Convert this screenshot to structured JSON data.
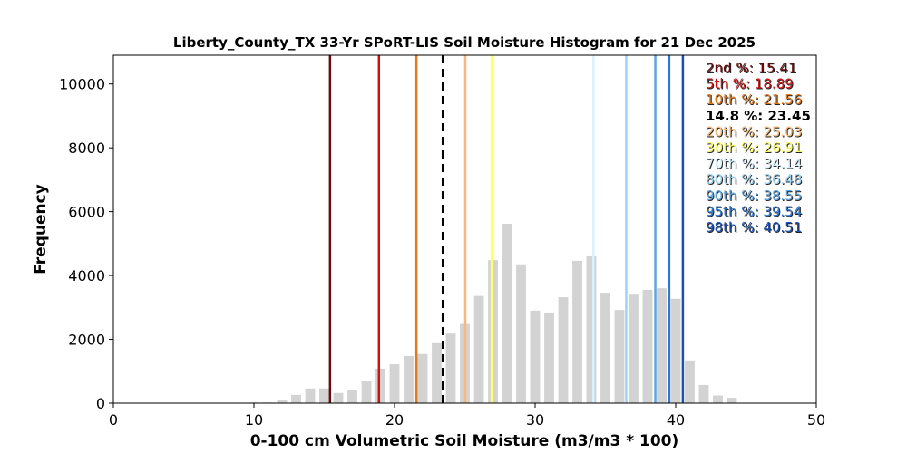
{
  "chart_data": {
    "type": "bar",
    "title": "Liberty_County_TX 33-Yr SPoRT-LIS Soil Moisture Histogram for 21 Dec 2025",
    "xlabel": "0-100 cm Volumetric Soil Moisture (m3/m3 * 100)",
    "ylabel": "Frequency",
    "xlim": [
      0,
      50
    ],
    "ylim": [
      0,
      10900
    ],
    "xticks": [
      0,
      10,
      20,
      30,
      40,
      50
    ],
    "yticks": [
      0,
      2000,
      4000,
      6000,
      8000,
      10000
    ],
    "bar_color": "#d3d3d3",
    "bar_width": 0.7,
    "bins": [
      {
        "x": 10.0,
        "value": 20
      },
      {
        "x": 11.0,
        "value": 20
      },
      {
        "x": 12.0,
        "value": 90
      },
      {
        "x": 13.0,
        "value": 260
      },
      {
        "x": 14.0,
        "value": 460
      },
      {
        "x": 15.0,
        "value": 460
      },
      {
        "x": 16.0,
        "value": 320
      },
      {
        "x": 17.0,
        "value": 400
      },
      {
        "x": 18.0,
        "value": 680
      },
      {
        "x": 19.0,
        "value": 1080
      },
      {
        "x": 20.0,
        "value": 1220
      },
      {
        "x": 21.0,
        "value": 1480
      },
      {
        "x": 22.0,
        "value": 1540
      },
      {
        "x": 23.0,
        "value": 1880
      },
      {
        "x": 24.0,
        "value": 2180
      },
      {
        "x": 25.0,
        "value": 2480
      },
      {
        "x": 26.0,
        "value": 3360
      },
      {
        "x": 27.0,
        "value": 4480
      },
      {
        "x": 28.0,
        "value": 5620
      },
      {
        "x": 29.0,
        "value": 4350
      },
      {
        "x": 30.0,
        "value": 2900
      },
      {
        "x": 31.0,
        "value": 2840
      },
      {
        "x": 32.0,
        "value": 3320
      },
      {
        "x": 33.0,
        "value": 4460
      },
      {
        "x": 34.0,
        "value": 4600
      },
      {
        "x": 35.0,
        "value": 3460
      },
      {
        "x": 36.0,
        "value": 2920
      },
      {
        "x": 37.0,
        "value": 3400
      },
      {
        "x": 38.0,
        "value": 3550
      },
      {
        "x": 39.0,
        "value": 3600
      },
      {
        "x": 40.0,
        "value": 3270
      },
      {
        "x": 41.0,
        "value": 1340
      },
      {
        "x": 42.0,
        "value": 570
      },
      {
        "x": 43.0,
        "value": 240
      },
      {
        "x": 44.0,
        "value": 170
      }
    ],
    "percentiles": [
      {
        "label": "2nd %: 15.41",
        "value": 15.41,
        "color": "#6b0a0a",
        "bold": false
      },
      {
        "label": "5th %: 18.89",
        "value": 18.89,
        "color": "#cc1414",
        "bold": false
      },
      {
        "label": "10th %: 21.56",
        "value": 21.56,
        "color": "#e07a1f",
        "bold": false
      },
      {
        "label": "20th %: 25.03",
        "value": 25.03,
        "color": "#f7b97a",
        "bold": false
      },
      {
        "label": "30th %: 26.91",
        "value": 26.91,
        "color": "#ffff66",
        "bold": false
      },
      {
        "label": "70th %: 34.14",
        "value": 34.14,
        "color": "#d8f2ff",
        "bold": false
      },
      {
        "label": "80th %: 36.48",
        "value": 36.48,
        "color": "#9ed3f2",
        "bold": false
      },
      {
        "label": "90th %: 38.55",
        "value": 38.55,
        "color": "#5da4e3",
        "bold": false
      },
      {
        "label": "95th %: 39.54",
        "value": 39.54,
        "color": "#2e78d2",
        "bold": false
      },
      {
        "label": "98th %: 40.51",
        "value": 40.51,
        "color": "#1a4fb3",
        "bold": false
      }
    ],
    "current": {
      "label": "14.8 %: 23.45",
      "value": 23.45,
      "color": "#000000",
      "style": "dashed"
    },
    "legend_placement": "top-right",
    "grid": false
  }
}
